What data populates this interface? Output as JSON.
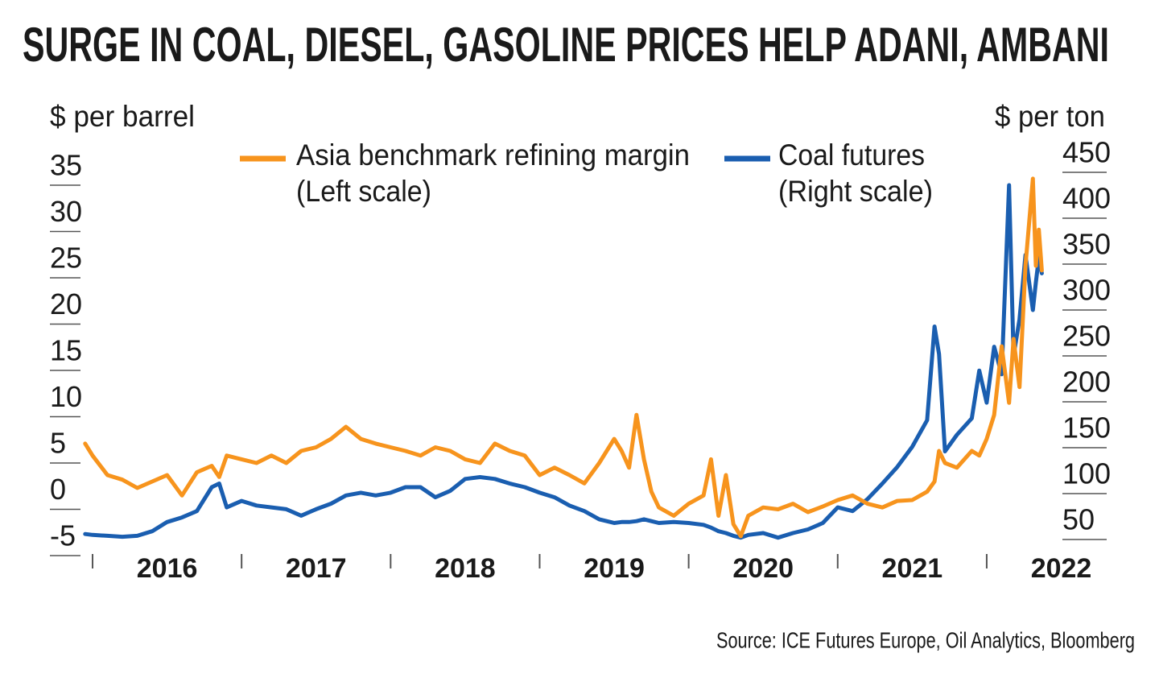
{
  "chart_data": {
    "type": "line",
    "title": "SURGE IN COAL, DIESEL, GASOLINE PRICES HELP ADANI, AMBANI",
    "y_label": "$ per barrel",
    "y2_label": "$ per ton",
    "source": "Source: ICE Futures Europe, Oil Analytics, Bloomberg",
    "x": [
      2015.95,
      2016.0,
      2016.1,
      2016.2,
      2016.3,
      2016.4,
      2016.5,
      2016.6,
      2016.7,
      2016.8,
      2016.85,
      2016.9,
      2017.0,
      2017.1,
      2017.2,
      2017.3,
      2017.4,
      2017.5,
      2017.6,
      2017.7,
      2017.8,
      2017.9,
      2018.0,
      2018.1,
      2018.2,
      2018.3,
      2018.4,
      2018.5,
      2018.6,
      2018.7,
      2018.8,
      2018.9,
      2019.0,
      2019.1,
      2019.2,
      2019.3,
      2019.4,
      2019.5,
      2019.55,
      2019.6,
      2019.65,
      2019.7,
      2019.75,
      2019.8,
      2019.9,
      2020.0,
      2020.1,
      2020.15,
      2020.2,
      2020.25,
      2020.3,
      2020.35,
      2020.4,
      2020.5,
      2020.6,
      2020.7,
      2020.8,
      2020.9,
      2021.0,
      2021.1,
      2021.2,
      2021.3,
      2021.4,
      2021.5,
      2021.6,
      2021.65,
      2021.68,
      2021.72,
      2021.8,
      2021.9,
      2021.95,
      2022.0,
      2022.05,
      2022.1,
      2022.15,
      2022.18,
      2022.22,
      2022.26,
      2022.31,
      2022.33,
      2022.35,
      2022.37
    ],
    "xlim": [
      2015.9,
      2022.4
    ],
    "xticks": [
      2016,
      2017,
      2018,
      2019,
      2020,
      2021,
      2022
    ],
    "ylim": [
      -5,
      35
    ],
    "yticks": [
      35,
      30,
      25,
      20,
      15,
      10,
      5,
      0,
      -5
    ],
    "y2lim": [
      50,
      450
    ],
    "y2ticks": [
      450,
      400,
      350,
      300,
      250,
      200,
      150,
      100,
      50
    ],
    "series": [
      {
        "name": "Asia benchmark refining margin",
        "scale_note": "(Left scale)",
        "color": "#f7941d",
        "axis": "y",
        "values": [
          7.1,
          5.8,
          3.7,
          3.2,
          2.3,
          3,
          3.7,
          1.5,
          4,
          4.7,
          3.5,
          5.8,
          5.4,
          5,
          5.8,
          5,
          6.3,
          6.7,
          7.6,
          8.9,
          7.6,
          7.1,
          6.7,
          6.3,
          5.8,
          6.7,
          6.3,
          5.4,
          5,
          7.1,
          6.3,
          5.8,
          3.7,
          4.5,
          3.7,
          2.8,
          5,
          7.6,
          6.3,
          4.5,
          10.2,
          5.4,
          1.9,
          0.2,
          -0.7,
          0.6,
          1.5,
          5.4,
          -0.7,
          3.7,
          -1.6,
          -2.9,
          -0.7,
          0.2,
          0,
          0.6,
          -0.3,
          0.3,
          1,
          1.5,
          0.6,
          0.2,
          0.9,
          1.0,
          1.9,
          3.0,
          6.3,
          5.0,
          4.5,
          6.3,
          5.8,
          7.6,
          10.2,
          17.6,
          11.5,
          18.4,
          13.2,
          26.3,
          35.7,
          26.3,
          30.2,
          25.8
        ]
      },
      {
        "name": "Coal futures",
        "scale_note": "(Right scale)",
        "color": "#1a5eb0",
        "axis": "y2",
        "values": [
          56,
          55,
          54,
          53,
          54,
          59,
          69,
          74,
          81,
          107,
          111,
          85,
          92,
          87,
          85,
          83,
          76,
          83,
          89,
          98,
          101,
          98,
          101,
          107,
          107,
          96,
          103,
          116,
          118,
          116,
          111,
          107,
          101,
          96,
          87,
          81,
          72,
          68,
          69,
          69,
          70,
          72,
          70,
          68,
          69,
          68,
          66,
          63,
          59,
          57,
          54,
          52,
          55,
          57,
          52,
          57,
          61,
          68,
          85,
          81,
          94,
          111,
          129,
          151,
          180,
          282,
          252,
          146,
          164,
          182,
          234,
          199,
          260,
          230,
          436,
          250,
          290,
          360,
          300,
          330,
          357,
          340
        ]
      }
    ]
  }
}
